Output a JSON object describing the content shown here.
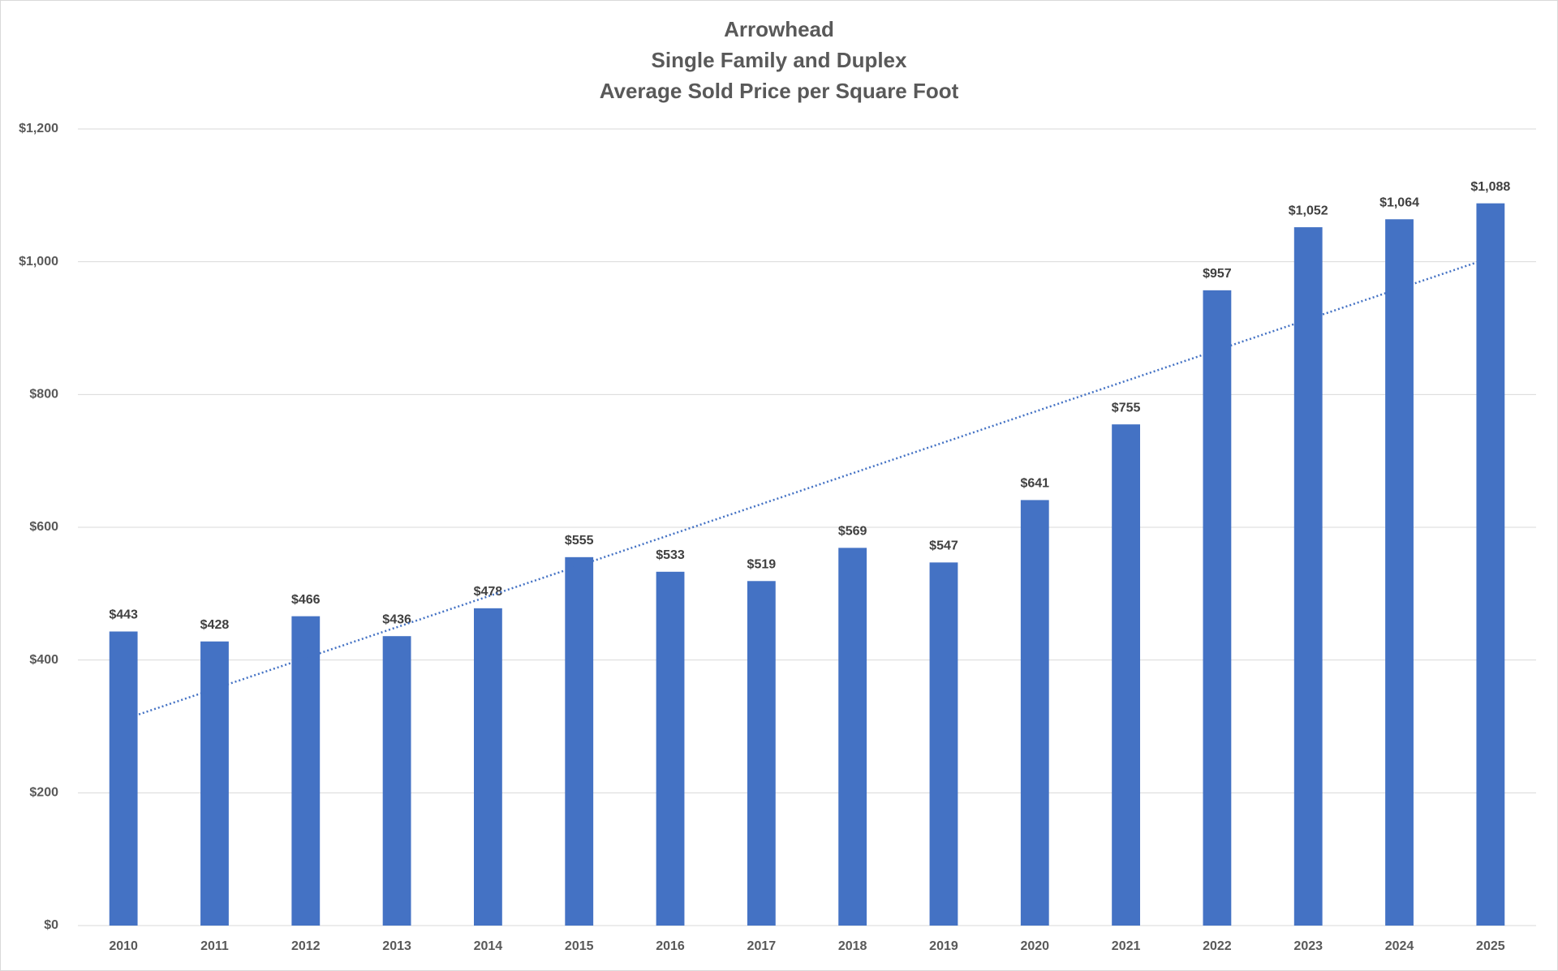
{
  "chart_data": {
    "type": "bar",
    "title": [
      "Arrowhead",
      "Single Family and Duplex",
      "Average Sold Price per Square Foot"
    ],
    "categories": [
      "2010",
      "2011",
      "2012",
      "2013",
      "2014",
      "2015",
      "2016",
      "2017",
      "2018",
      "2019",
      "2020",
      "2021",
      "2022",
      "2023",
      "2024",
      "2025"
    ],
    "values": [
      443,
      428,
      466,
      436,
      478,
      555,
      533,
      519,
      569,
      547,
      641,
      755,
      957,
      1052,
      1064,
      1088
    ],
    "value_labels": [
      "$443",
      "$428",
      "$466",
      "$436",
      "$478",
      "$555",
      "$533",
      "$519",
      "$569",
      "$547",
      "$641",
      "$755",
      "$957",
      "$1,052",
      "$1,064",
      "$1,088"
    ],
    "color": "#4472c4",
    "trendline": "linear",
    "ylim": [
      0,
      1200
    ],
    "yticks": [
      {
        "value": 0,
        "label": "$0"
      },
      {
        "value": 200,
        "label": "$200"
      },
      {
        "value": 400,
        "label": "$400"
      },
      {
        "value": 600,
        "label": "$600"
      },
      {
        "value": 800,
        "label": "$800"
      },
      {
        "value": 1000,
        "label": "$1,000"
      },
      {
        "value": 1200,
        "label": "$1,200"
      }
    ],
    "grid": true
  }
}
